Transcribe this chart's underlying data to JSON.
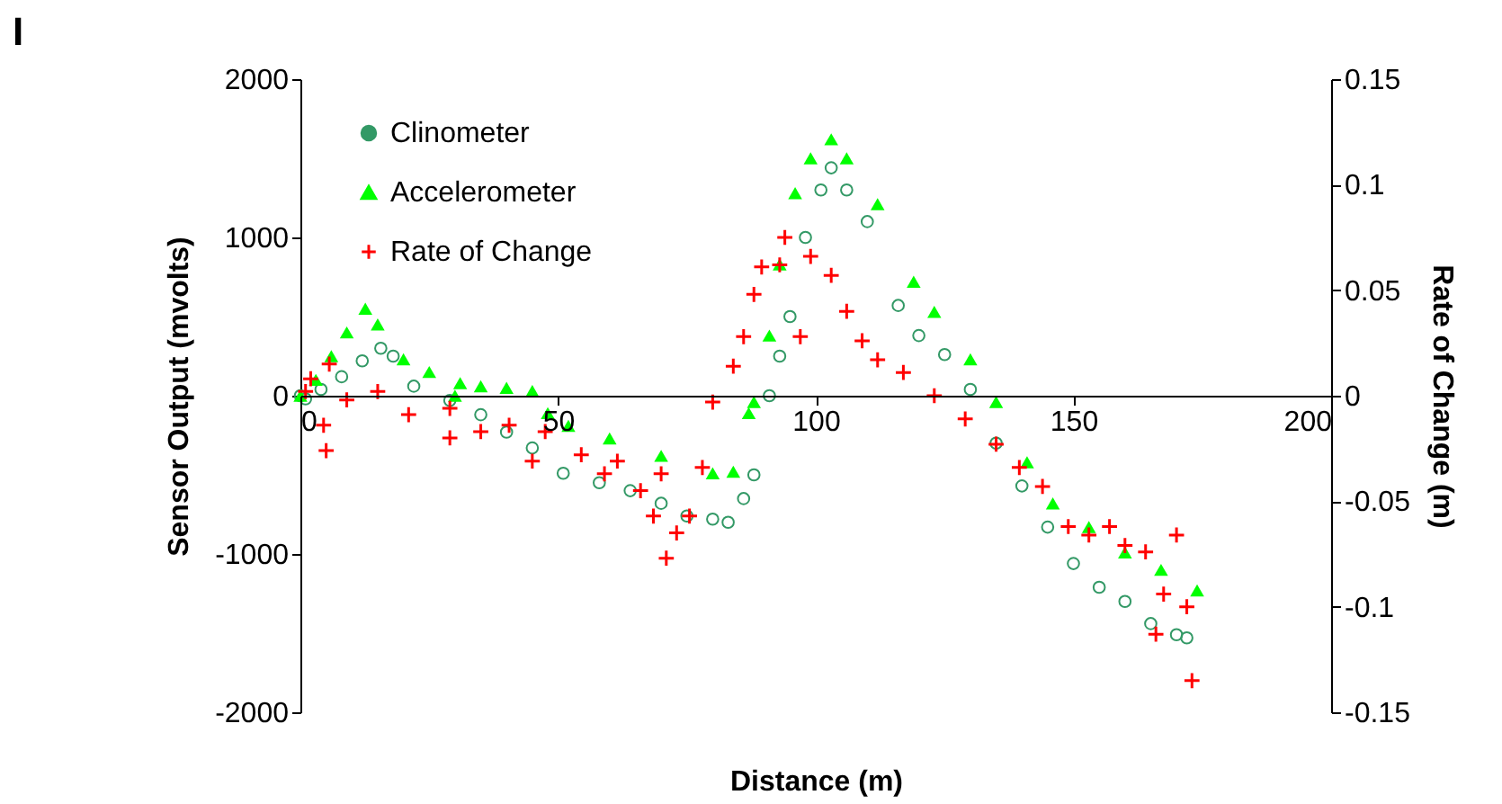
{
  "chart_data": {
    "type": "scatter",
    "xlabel": "Distance (m)",
    "ylabel": "Sensor Output (mvolts)",
    "y2label": "Rate of Change (m)",
    "annotations": [
      "I"
    ],
    "xlim": [
      0,
      200
    ],
    "xticks": [
      0,
      50,
      100,
      150,
      200
    ],
    "ylim": [
      -2000,
      2000
    ],
    "yticks": [
      -2000,
      -1000,
      0,
      1000,
      2000
    ],
    "y2lim": [
      -0.15,
      0.15
    ],
    "y2ticks": [
      -0.15,
      -0.1,
      -0.05,
      0,
      0.05,
      0.1,
      0.15
    ],
    "grid": false,
    "legend": "top left",
    "series": [
      {
        "name": "Clinometer",
        "color": "#339966",
        "marker": "circle",
        "x": [
          0,
          1,
          4,
          8,
          12,
          15.6,
          18,
          22,
          29,
          35,
          40,
          45,
          51,
          58,
          64,
          70,
          75,
          80,
          83,
          86,
          88,
          91,
          93,
          95,
          98,
          101,
          103,
          106,
          110,
          116,
          120,
          125,
          130,
          135,
          140,
          145,
          150,
          155,
          160,
          165,
          170,
          172
        ],
        "values": [
          0,
          -20,
          40,
          120,
          220,
          300,
          250,
          60,
          -30,
          -120,
          -230,
          -330,
          -490,
          -550,
          -600,
          -680,
          -760,
          -780,
          -800,
          -650,
          -500,
          0,
          250,
          500,
          1000,
          1300,
          1440,
          1300,
          1100,
          570,
          380,
          260,
          40,
          -300,
          -570,
          -830,
          -1060,
          -1210,
          -1300,
          -1440,
          -1510,
          -1530
        ]
      },
      {
        "name": "Accelerometer",
        "color": "#00ff00",
        "marker": "triangle",
        "x": [
          0,
          3,
          6,
          9,
          12.6,
          15,
          20,
          25,
          30,
          31,
          35,
          40,
          45,
          48,
          52,
          60,
          70,
          80,
          84,
          87,
          88,
          91,
          93,
          96,
          99,
          103,
          106,
          112,
          119,
          123,
          130,
          135,
          141,
          146,
          153,
          160,
          167,
          174
        ],
        "values": [
          0,
          100,
          250,
          400,
          550,
          450,
          230,
          150,
          0,
          80,
          60,
          50,
          30,
          -110,
          -190,
          -270,
          -380,
          -490,
          -480,
          -110,
          -40,
          380,
          830,
          1280,
          1500,
          1620,
          1500,
          1210,
          720,
          530,
          230,
          -40,
          -420,
          -680,
          -830,
          -990,
          -1100,
          -1230
        ]
      },
      {
        "name": "Rate of Change",
        "color": "#ff0000",
        "marker": "cross",
        "axis": "y2",
        "x": [
          1,
          2,
          4.5,
          5,
          5.6,
          9,
          15,
          21,
          29,
          29,
          35,
          40.5,
          45,
          47.5,
          54.5,
          59,
          61.5,
          66,
          68.5,
          70,
          71,
          73,
          75.5,
          78,
          80,
          84,
          86,
          88,
          89.5,
          93,
          94,
          97,
          99,
          103,
          106,
          109,
          112,
          117,
          123,
          129,
          135,
          139.5,
          144,
          149,
          153,
          157,
          160,
          164,
          166,
          167.5,
          170,
          172,
          173
        ],
        "values": [
          0.002,
          0.008,
          -0.014,
          -0.026,
          0.015,
          -0.002,
          0.002,
          -0.009,
          -0.006,
          -0.02,
          -0.017,
          -0.014,
          -0.031,
          -0.017,
          -0.028,
          -0.037,
          -0.031,
          -0.045,
          -0.057,
          -0.037,
          -0.077,
          -0.065,
          -0.057,
          -0.034,
          -0.003,
          0.014,
          0.028,
          0.048,
          0.061,
          0.062,
          0.075,
          0.028,
          0.066,
          0.057,
          0.04,
          0.026,
          0.017,
          0.011,
          0,
          -0.011,
          -0.023,
          -0.034,
          -0.043,
          -0.062,
          -0.066,
          -0.062,
          -0.071,
          -0.074,
          -0.113,
          -0.094,
          -0.066,
          -0.1,
          -0.135
        ]
      }
    ]
  }
}
